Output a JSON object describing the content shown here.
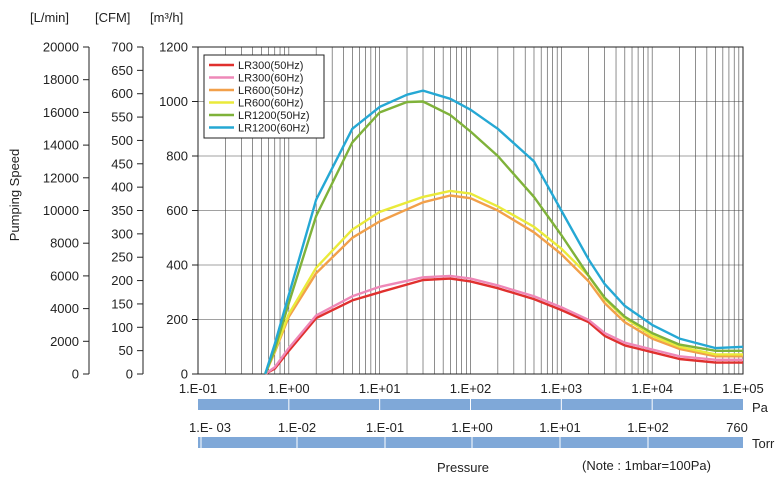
{
  "chart_data": {
    "type": "line",
    "title": "",
    "ylabel": "Pumping Speed",
    "xlabel": "Pressure",
    "note": "(Note : 1mbar=100Pa)",
    "x_scale": "log",
    "xlim": [
      0.1,
      100000
    ],
    "ylim": [
      0,
      1200
    ],
    "grid": true,
    "legend_position": "top-left",
    "x_unit": "Pa",
    "x_ticks": [
      "1.E-01",
      "1.E+00",
      "1.E+01",
      "1.E+02",
      "1.E+03",
      "1.E+04",
      "1.E+05"
    ],
    "y_axes": [
      {
        "unit": "[L/min]",
        "ticks": [
          "20000",
          "18000",
          "16000",
          "14000",
          "12000",
          "10000",
          "8000",
          "6000",
          "4000",
          "2000",
          "0"
        ]
      },
      {
        "unit": "[CFM]",
        "ticks": [
          "700",
          "650",
          "600",
          "550",
          "500",
          "450",
          "400",
          "350",
          "300",
          "250",
          "200",
          "150",
          "100",
          "50",
          "0"
        ]
      },
      {
        "unit": "[m³/h]",
        "ticks": [
          "1200",
          "1000",
          "800",
          "600",
          "400",
          "200",
          "0"
        ]
      }
    ],
    "torr_axis": {
      "unit": "Torr",
      "ticks": [
        "1.E- 03",
        "1.E-02",
        "1.E-01",
        "1.E+00",
        "1.E+01",
        "1.E+02",
        "760"
      ]
    },
    "series": [
      {
        "name": "LR300(50Hz)",
        "color": "#e0302e",
        "x": [
          0.55,
          0.7,
          1,
          2,
          5,
          10,
          30,
          60,
          100,
          200,
          500,
          1000,
          2000,
          3000,
          5000,
          10000,
          20000,
          50000,
          100000
        ],
        "y": [
          0,
          20,
          85,
          205,
          270,
          300,
          345,
          350,
          340,
          315,
          275,
          235,
          190,
          140,
          105,
          80,
          55,
          42,
          42
        ]
      },
      {
        "name": "LR300(60Hz)",
        "color": "#ee88b8",
        "x": [
          0.55,
          0.7,
          1,
          2,
          5,
          10,
          30,
          60,
          100,
          200,
          500,
          1000,
          2000,
          3000,
          5000,
          10000,
          20000,
          50000,
          100000
        ],
        "y": [
          0,
          25,
          95,
          215,
          285,
          320,
          355,
          360,
          350,
          325,
          285,
          245,
          198,
          150,
          115,
          90,
          65,
          52,
          52
        ]
      },
      {
        "name": "LR600(50Hz)",
        "color": "#f2a04a",
        "x": [
          0.55,
          0.7,
          1,
          2,
          5,
          10,
          30,
          60,
          100,
          200,
          500,
          1000,
          2000,
          3000,
          5000,
          10000,
          20000,
          50000,
          100000
        ],
        "y": [
          0,
          80,
          210,
          370,
          500,
          560,
          630,
          655,
          645,
          600,
          520,
          440,
          340,
          260,
          190,
          130,
          92,
          65,
          65
        ]
      },
      {
        "name": "LR600(60Hz)",
        "color": "#eaea3a",
        "x": [
          0.55,
          0.7,
          1,
          2,
          5,
          10,
          30,
          60,
          100,
          200,
          500,
          1000,
          2000,
          3000,
          5000,
          10000,
          20000,
          50000,
          100000
        ],
        "y": [
          0,
          85,
          220,
          390,
          530,
          595,
          650,
          672,
          662,
          615,
          540,
          460,
          360,
          275,
          205,
          140,
          100,
          72,
          72
        ]
      },
      {
        "name": "LR1200(50Hz)",
        "color": "#7fb23a",
        "x": [
          0.55,
          0.7,
          1,
          2,
          5,
          10,
          20,
          30,
          60,
          100,
          200,
          500,
          1000,
          2000,
          3000,
          5000,
          10000,
          20000,
          50000,
          100000
        ],
        "y": [
          0,
          90,
          260,
          580,
          850,
          960,
          998,
          1000,
          950,
          890,
          800,
          650,
          510,
          360,
          280,
          210,
          150,
          108,
          85,
          85
        ]
      },
      {
        "name": "LR1200(60Hz)",
        "color": "#25a8d4",
        "x": [
          0.55,
          0.7,
          1,
          2,
          5,
          10,
          20,
          30,
          60,
          100,
          200,
          500,
          1000,
          2000,
          3000,
          5000,
          10000,
          20000,
          50000,
          100000
        ],
        "y": [
          0,
          110,
          290,
          640,
          900,
          980,
          1025,
          1040,
          1010,
          970,
          900,
          780,
          600,
          420,
          330,
          250,
          180,
          130,
          95,
          100
        ]
      }
    ]
  }
}
